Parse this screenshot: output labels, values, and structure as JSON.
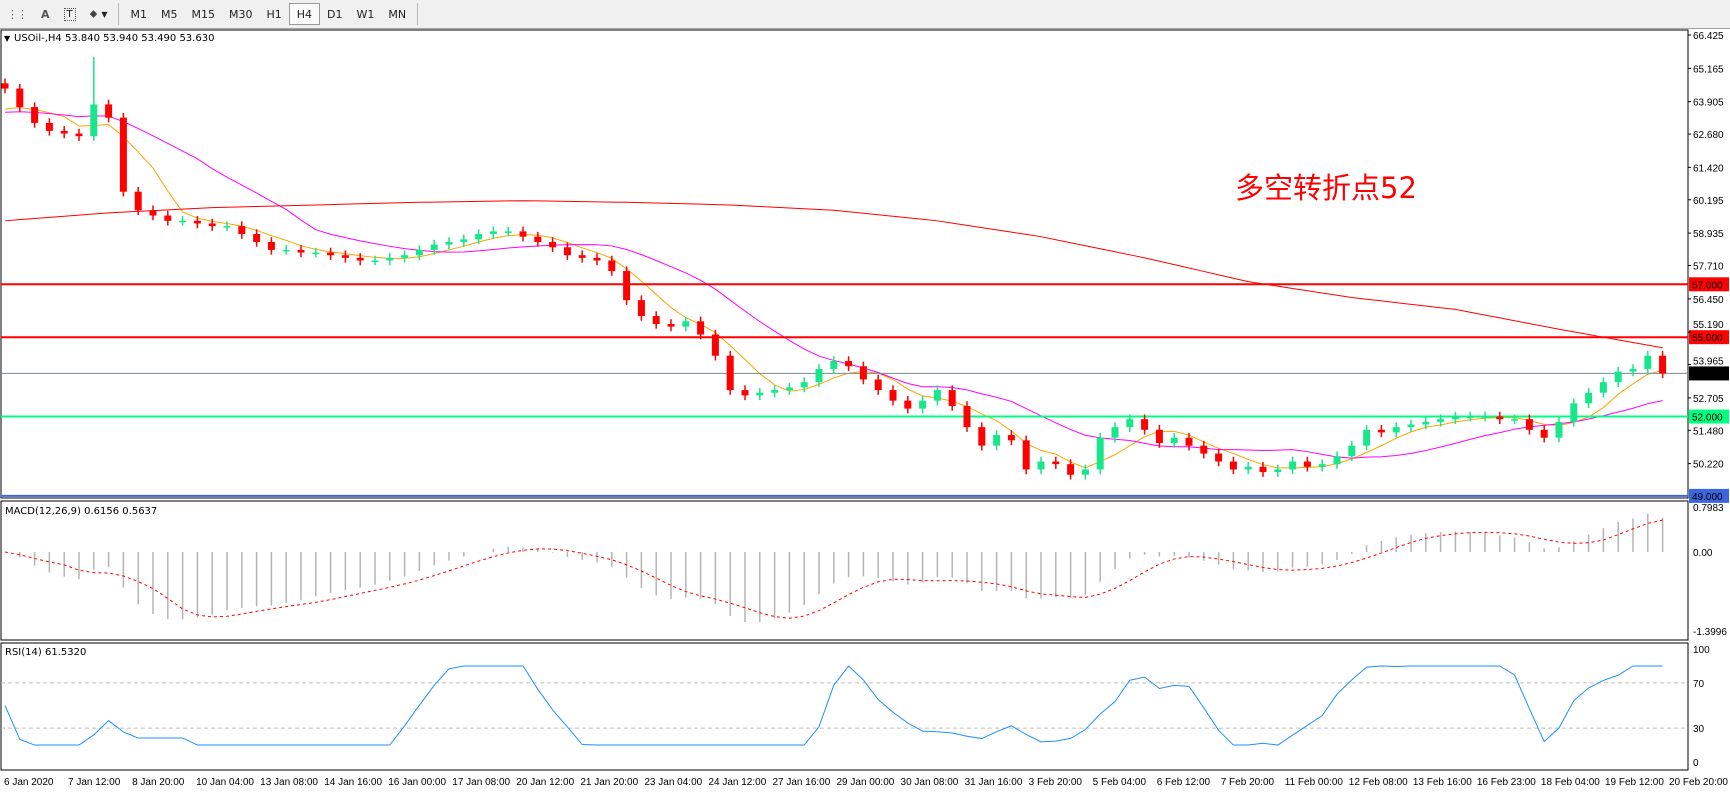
{
  "toolbar": {
    "tools": [
      {
        "name": "text-label-tool",
        "glyph": "A"
      },
      {
        "name": "text-box-tool",
        "glyph": "T"
      },
      {
        "name": "shapes-tool",
        "glyph": "⬥"
      }
    ],
    "timeframes": [
      "M1",
      "M5",
      "M15",
      "M30",
      "H1",
      "H4",
      "D1",
      "W1",
      "MN"
    ],
    "active_timeframe": "H4"
  },
  "main": {
    "header": "USOil-,H4  53.840 53.940 53.490 53.630",
    "annotation": "多空转折点52",
    "price_axis": [
      "66.425",
      "65.165",
      "63.905",
      "62.680",
      "61.420",
      "60.195",
      "58.935",
      "57.710",
      "56.450",
      "55.190",
      "53.965",
      "52.705",
      "51.480",
      "50.220"
    ],
    "levels": [
      {
        "label": "57.000",
        "value": 57.0,
        "color": "#ff0000"
      },
      {
        "label": "55.000",
        "value": 55.0,
        "color": "#ff0000"
      },
      {
        "label": "52.000",
        "value": 52.0,
        "color": "#00ff80"
      },
      {
        "label": "49.000",
        "value": 49.0,
        "color": "#3c64dc"
      }
    ],
    "current_price": {
      "label": "53.630",
      "value": 53.63
    }
  },
  "macd": {
    "header": "MACD(12,26,9) 0.6156 0.5637",
    "axis": [
      "0.7983",
      "0.00",
      "-1.3996"
    ]
  },
  "rsi": {
    "header": "RSI(14) 61.5320",
    "axis": [
      "100",
      "70",
      "30",
      "0"
    ]
  },
  "time_axis": [
    "6 Jan 2020",
    "7 Jan 12:00",
    "8 Jan 20:00",
    "10 Jan 04:00",
    "13 Jan 08:00",
    "14 Jan 16:00",
    "16 Jan 00:00",
    "17 Jan 08:00",
    "20 Jan 12:00",
    "21 Jan 20:00",
    "23 Jan 04:00",
    "24 Jan 12:00",
    "27 Jan 16:00",
    "29 Jan 00:00",
    "30 Jan 08:00",
    "31 Jan 16:00",
    "3 Feb 20:00",
    "5 Feb 04:00",
    "6 Feb 12:00",
    "7 Feb 20:00",
    "11 Feb 00:00",
    "12 Feb 08:00",
    "13 Feb 16:00",
    "16 Feb 23:00",
    "18 Feb 04:00",
    "19 Feb 12:00",
    "20 Feb 20:00"
  ],
  "chart_data": {
    "type": "candlestick",
    "symbol": "USOil-",
    "timeframe": "H4",
    "ylim": [
      49.0,
      66.425
    ],
    "closes": [
      64.4,
      63.7,
      63.1,
      62.8,
      62.7,
      62.6,
      63.8,
      63.3,
      60.5,
      59.8,
      59.6,
      59.4,
      59.4,
      59.3,
      59.2,
      59.2,
      58.9,
      58.6,
      58.3,
      58.3,
      58.2,
      58.2,
      58.1,
      58.0,
      57.9,
      57.9,
      58.0,
      58.1,
      58.3,
      58.5,
      58.6,
      58.7,
      58.9,
      59.0,
      59.0,
      58.8,
      58.6,
      58.4,
      58.1,
      58.0,
      57.9,
      57.5,
      56.4,
      55.8,
      55.5,
      55.4,
      55.6,
      55.1,
      54.3,
      53.0,
      52.8,
      52.9,
      53.0,
      53.1,
      53.3,
      53.8,
      54.1,
      53.9,
      53.4,
      53.0,
      52.6,
      52.3,
      52.6,
      53.0,
      52.4,
      51.6,
      50.9,
      51.3,
      51.1,
      50.0,
      50.3,
      50.2,
      49.8,
      50.0,
      51.2,
      51.6,
      51.9,
      51.5,
      51.0,
      51.2,
      50.9,
      50.6,
      50.3,
      50.0,
      50.1,
      49.9,
      50.0,
      50.3,
      50.1,
      50.2,
      50.5,
      50.9,
      51.5,
      51.4,
      51.6,
      51.7,
      51.8,
      51.9,
      52.0,
      52.0,
      52.0,
      51.9,
      51.9,
      51.5,
      51.2,
      51.8,
      52.5,
      52.9,
      53.3,
      53.7,
      53.8,
      54.3,
      53.63
    ],
    "first_open": 64.6,
    "spike": {
      "index": 6,
      "high": 65.6
    },
    "ma_slow": [
      59.4,
      59.7,
      59.9,
      60.0,
      60.1,
      60.16,
      60.1,
      60.0,
      59.8,
      59.4,
      58.8,
      58.0,
      57.1,
      56.5,
      56.05,
      55.3,
      54.6
    ],
    "colors": {
      "up": "#19e68c",
      "down": "#ff0000",
      "ma_fast": "#ffa500",
      "ma_mid": "#ff00ff",
      "ma_slow": "#ff0000",
      "macd_signal": "#ff0000",
      "macd_hist": "#b4b4b4",
      "rsi": "#1e90ff"
    }
  }
}
